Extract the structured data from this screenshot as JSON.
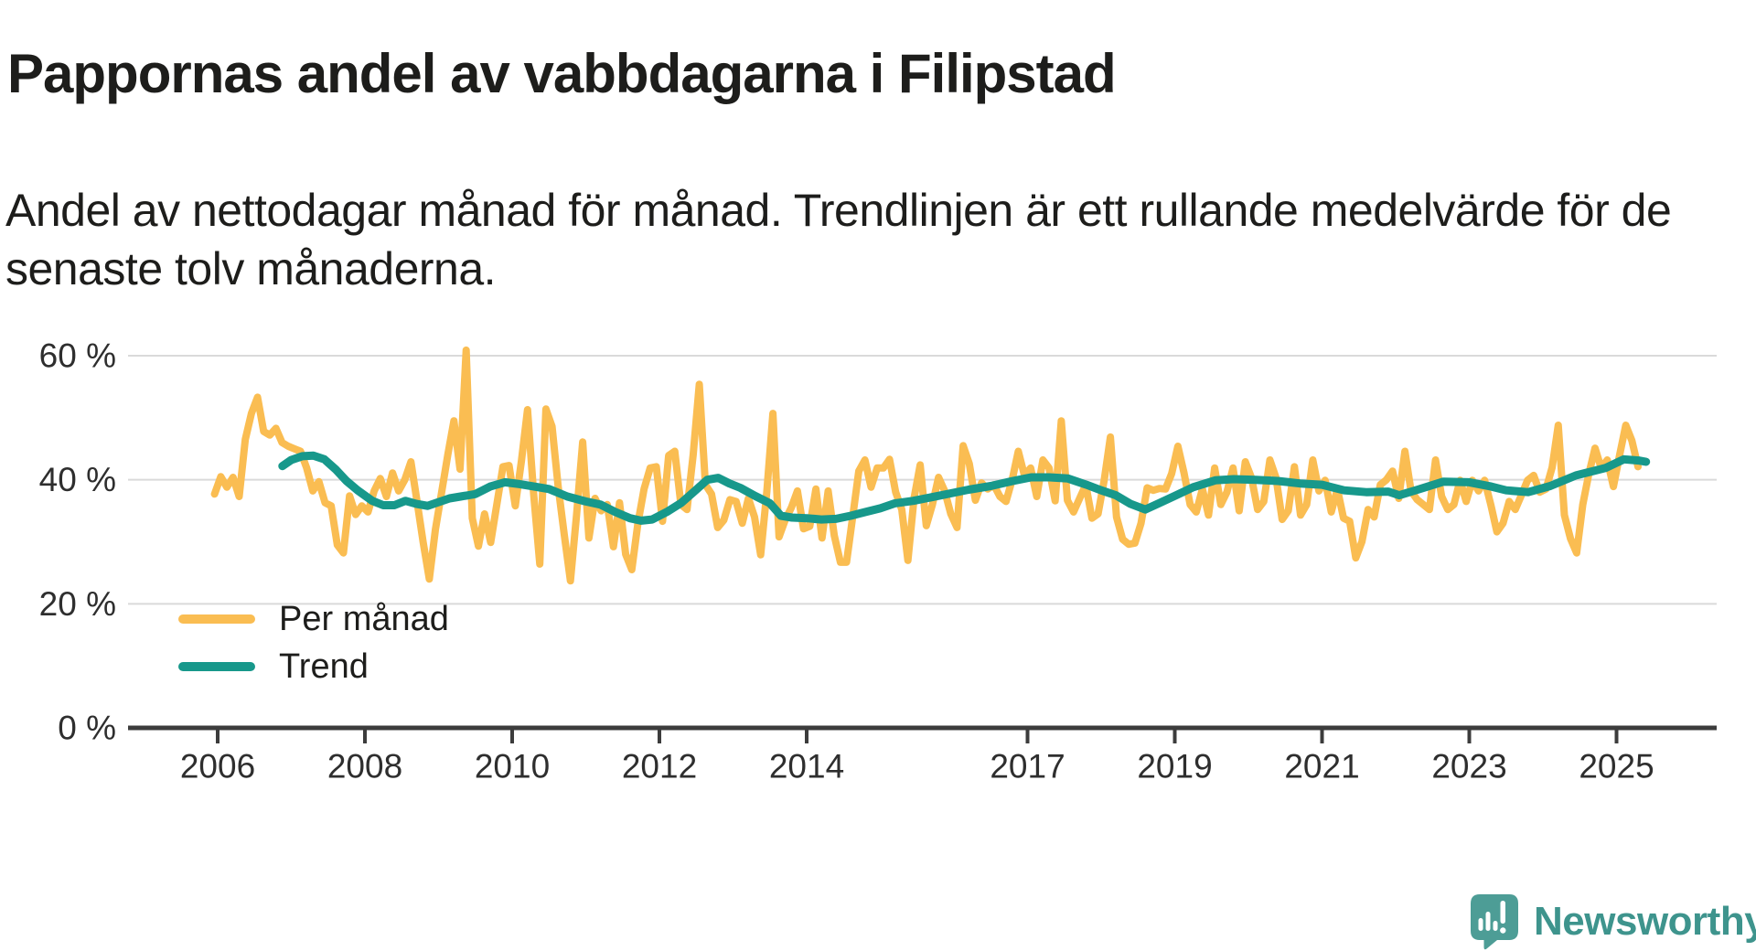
{
  "header": {
    "title": "Pappornas andel av vabbdagarna i Filipstad",
    "subtitle": "Andel av nettodagar månad för månad. Trendlinjen är ett rullande medelvärde för de senaste tolv månaderna."
  },
  "legend": [
    {
      "label": "Per månad",
      "color": "#FABD52"
    },
    {
      "label": "Trend",
      "color": "#17988B"
    }
  ],
  "footer": {
    "brand": "Newsworthy",
    "logo_icon": "newsworthy-speech-bubble-bar-chart"
  },
  "colors": {
    "per_month_line": "#FABD52",
    "trend_line": "#17988B",
    "gridline": "#DADADA",
    "axis": "#3C3C3C",
    "text": "#1D1D1B",
    "brand_teal": "#3E948D",
    "logo_bubble": "#4D9D96"
  },
  "chart_data": {
    "type": "line",
    "title": "Pappornas andel av vabbdagarna i Filipstad",
    "xlabel": "",
    "ylabel": "",
    "unit": "%",
    "xlim": [
      2005.7,
      2026.3
    ],
    "ylim": [
      0,
      62
    ],
    "grid": "horizontal",
    "legend_position": "inside-bottom-left",
    "x_ticks": [
      2006,
      2008,
      2010,
      2012,
      2014,
      2017,
      2019,
      2021,
      2023,
      2025
    ],
    "y_ticks": [
      {
        "value": 0,
        "label": "0 %"
      },
      {
        "value": 20,
        "label": "20 %"
      },
      {
        "value": 40,
        "label": "40 %"
      },
      {
        "value": 60,
        "label": "60 %"
      }
    ],
    "series": [
      {
        "name": "Per månad",
        "color": "#FABD52",
        "start_year": 2005,
        "start_month": 12,
        "step_months": 1,
        "values": [
          37.7,
          40.5,
          38.8,
          40.4,
          37.3,
          46.5,
          50.7,
          53.3,
          47.8,
          47.2,
          48.3,
          46.0,
          45.4,
          45.0,
          44.6,
          41.9,
          38.2,
          39.7,
          36.3,
          35.8,
          29.5,
          28.2,
          37.4,
          34.4,
          35.8,
          34.8,
          38.2,
          40.2,
          37.3,
          41.1,
          38.2,
          40.0,
          42.9,
          36.5,
          29.9,
          24.0,
          32.0,
          38.0,
          44.0,
          49.5,
          41.7,
          60.9,
          33.8,
          29.3,
          34.5,
          29.9,
          36.0,
          42.1,
          42.3,
          35.8,
          43.0,
          51.3,
          37.7,
          26.4,
          51.4,
          48.6,
          38.9,
          31.1,
          23.7,
          34.3,
          46.1,
          30.6,
          37.0,
          35.0,
          36.0,
          29.2,
          36.3,
          28.0,
          25.5,
          33.0,
          38.5,
          41.9,
          42.1,
          33.3,
          43.9,
          44.6,
          36.0,
          35.2,
          44.0,
          55.4,
          39.2,
          37.7,
          32.3,
          33.5,
          36.8,
          36.5,
          33.0,
          37.0,
          34.0,
          27.9,
          38.0,
          50.7,
          30.8,
          33.5,
          35.5,
          38.2,
          32.1,
          32.5,
          38.5,
          30.6,
          38.2,
          31.0,
          26.7,
          26.7,
          34.0,
          41.4,
          43.2,
          38.8,
          41.9,
          41.9,
          43.3,
          38.0,
          35.2,
          27.0,
          37.0,
          42.4,
          32.6,
          36.0,
          40.4,
          38.2,
          34.5,
          32.3,
          45.5,
          42.6,
          36.7,
          39.5,
          38.5,
          39.2,
          37.3,
          36.5,
          40.0,
          44.6,
          40.7,
          41.9,
          37.3,
          43.2,
          41.9,
          36.6,
          49.5,
          36.7,
          34.8,
          37.0,
          39.2,
          33.8,
          34.5,
          40.0,
          46.9,
          34.0,
          30.4,
          29.6,
          29.8,
          33.0,
          38.7,
          38.3,
          38.6,
          38.5,
          41.0,
          45.4,
          41.1,
          36.0,
          34.8,
          38.5,
          34.3,
          41.9,
          36.0,
          38.0,
          41.9,
          35.0,
          42.9,
          40.3,
          35.2,
          36.5,
          43.2,
          40.3,
          33.6,
          35.0,
          42.1,
          34.3,
          36.0,
          43.2,
          38.2,
          39.9,
          34.8,
          38.5,
          33.8,
          33.3,
          27.4,
          30.0,
          35.2,
          34.0,
          39.2,
          40.0,
          41.4,
          37.0,
          44.6,
          38.2,
          36.8,
          36.0,
          35.2,
          43.2,
          37.3,
          35.2,
          36.0,
          39.9,
          36.5,
          39.9,
          38.2,
          39.9,
          36.0,
          31.6,
          33.0,
          36.5,
          35.2,
          37.5,
          39.9,
          40.7,
          38.0,
          38.5,
          42.0,
          48.8,
          34.3,
          30.5,
          28.2,
          36.0,
          41.0,
          45.1,
          41.9,
          43.2,
          38.9,
          44.0,
          48.8,
          46.3,
          42.1
        ]
      },
      {
        "name": "Trend",
        "color": "#17988B",
        "points": [
          [
            2006.88,
            42.2
          ],
          [
            2007.0,
            43.2
          ],
          [
            2007.15,
            43.8
          ],
          [
            2007.3,
            43.9
          ],
          [
            2007.45,
            43.3
          ],
          [
            2007.6,
            41.7
          ],
          [
            2007.75,
            39.8
          ],
          [
            2007.9,
            38.3
          ],
          [
            2008.1,
            36.6
          ],
          [
            2008.25,
            35.9
          ],
          [
            2008.4,
            35.9
          ],
          [
            2008.55,
            36.6
          ],
          [
            2008.7,
            36.1
          ],
          [
            2008.85,
            35.8
          ],
          [
            2009.0,
            36.4
          ],
          [
            2009.15,
            37.0
          ],
          [
            2009.3,
            37.3
          ],
          [
            2009.5,
            37.7
          ],
          [
            2009.7,
            38.9
          ],
          [
            2009.9,
            39.6
          ],
          [
            2010.1,
            39.3
          ],
          [
            2010.3,
            38.9
          ],
          [
            2010.5,
            38.5
          ],
          [
            2010.75,
            37.3
          ],
          [
            2011.0,
            36.5
          ],
          [
            2011.2,
            36.0
          ],
          [
            2011.4,
            34.8
          ],
          [
            2011.6,
            33.8
          ],
          [
            2011.75,
            33.4
          ],
          [
            2011.9,
            33.6
          ],
          [
            2012.1,
            34.8
          ],
          [
            2012.3,
            36.3
          ],
          [
            2012.5,
            38.4
          ],
          [
            2012.65,
            40.0
          ],
          [
            2012.8,
            40.3
          ],
          [
            2012.95,
            39.4
          ],
          [
            2013.1,
            38.7
          ],
          [
            2013.3,
            37.4
          ],
          [
            2013.5,
            36.2
          ],
          [
            2013.65,
            34.2
          ],
          [
            2013.8,
            33.9
          ],
          [
            2014.0,
            33.8
          ],
          [
            2014.2,
            33.6
          ],
          [
            2014.4,
            33.7
          ],
          [
            2014.6,
            34.2
          ],
          [
            2014.8,
            34.8
          ],
          [
            2015.0,
            35.4
          ],
          [
            2015.2,
            36.2
          ],
          [
            2015.45,
            36.6
          ],
          [
            2015.7,
            37.2
          ],
          [
            2015.95,
            37.8
          ],
          [
            2016.2,
            38.4
          ],
          [
            2016.5,
            39.0
          ],
          [
            2016.8,
            39.8
          ],
          [
            2017.05,
            40.4
          ],
          [
            2017.3,
            40.4
          ],
          [
            2017.55,
            40.2
          ],
          [
            2017.8,
            39.2
          ],
          [
            2018.0,
            38.3
          ],
          [
            2018.2,
            37.5
          ],
          [
            2018.4,
            36.1
          ],
          [
            2018.6,
            35.2
          ],
          [
            2018.8,
            36.3
          ],
          [
            2019.0,
            37.4
          ],
          [
            2019.25,
            38.8
          ],
          [
            2019.55,
            39.9
          ],
          [
            2019.8,
            40.1
          ],
          [
            2020.1,
            40.0
          ],
          [
            2020.4,
            39.8
          ],
          [
            2020.7,
            39.4
          ],
          [
            2021.0,
            39.2
          ],
          [
            2021.3,
            38.3
          ],
          [
            2021.6,
            38.0
          ],
          [
            2021.9,
            38.1
          ],
          [
            2022.05,
            37.5
          ],
          [
            2022.3,
            38.4
          ],
          [
            2022.65,
            39.7
          ],
          [
            2023.0,
            39.6
          ],
          [
            2023.3,
            38.9
          ],
          [
            2023.5,
            38.3
          ],
          [
            2023.8,
            38.0
          ],
          [
            2024.1,
            39.0
          ],
          [
            2024.45,
            40.7
          ],
          [
            2024.85,
            41.9
          ],
          [
            2025.1,
            43.3
          ],
          [
            2025.3,
            43.1
          ],
          [
            2025.4,
            42.9
          ]
        ]
      }
    ]
  }
}
